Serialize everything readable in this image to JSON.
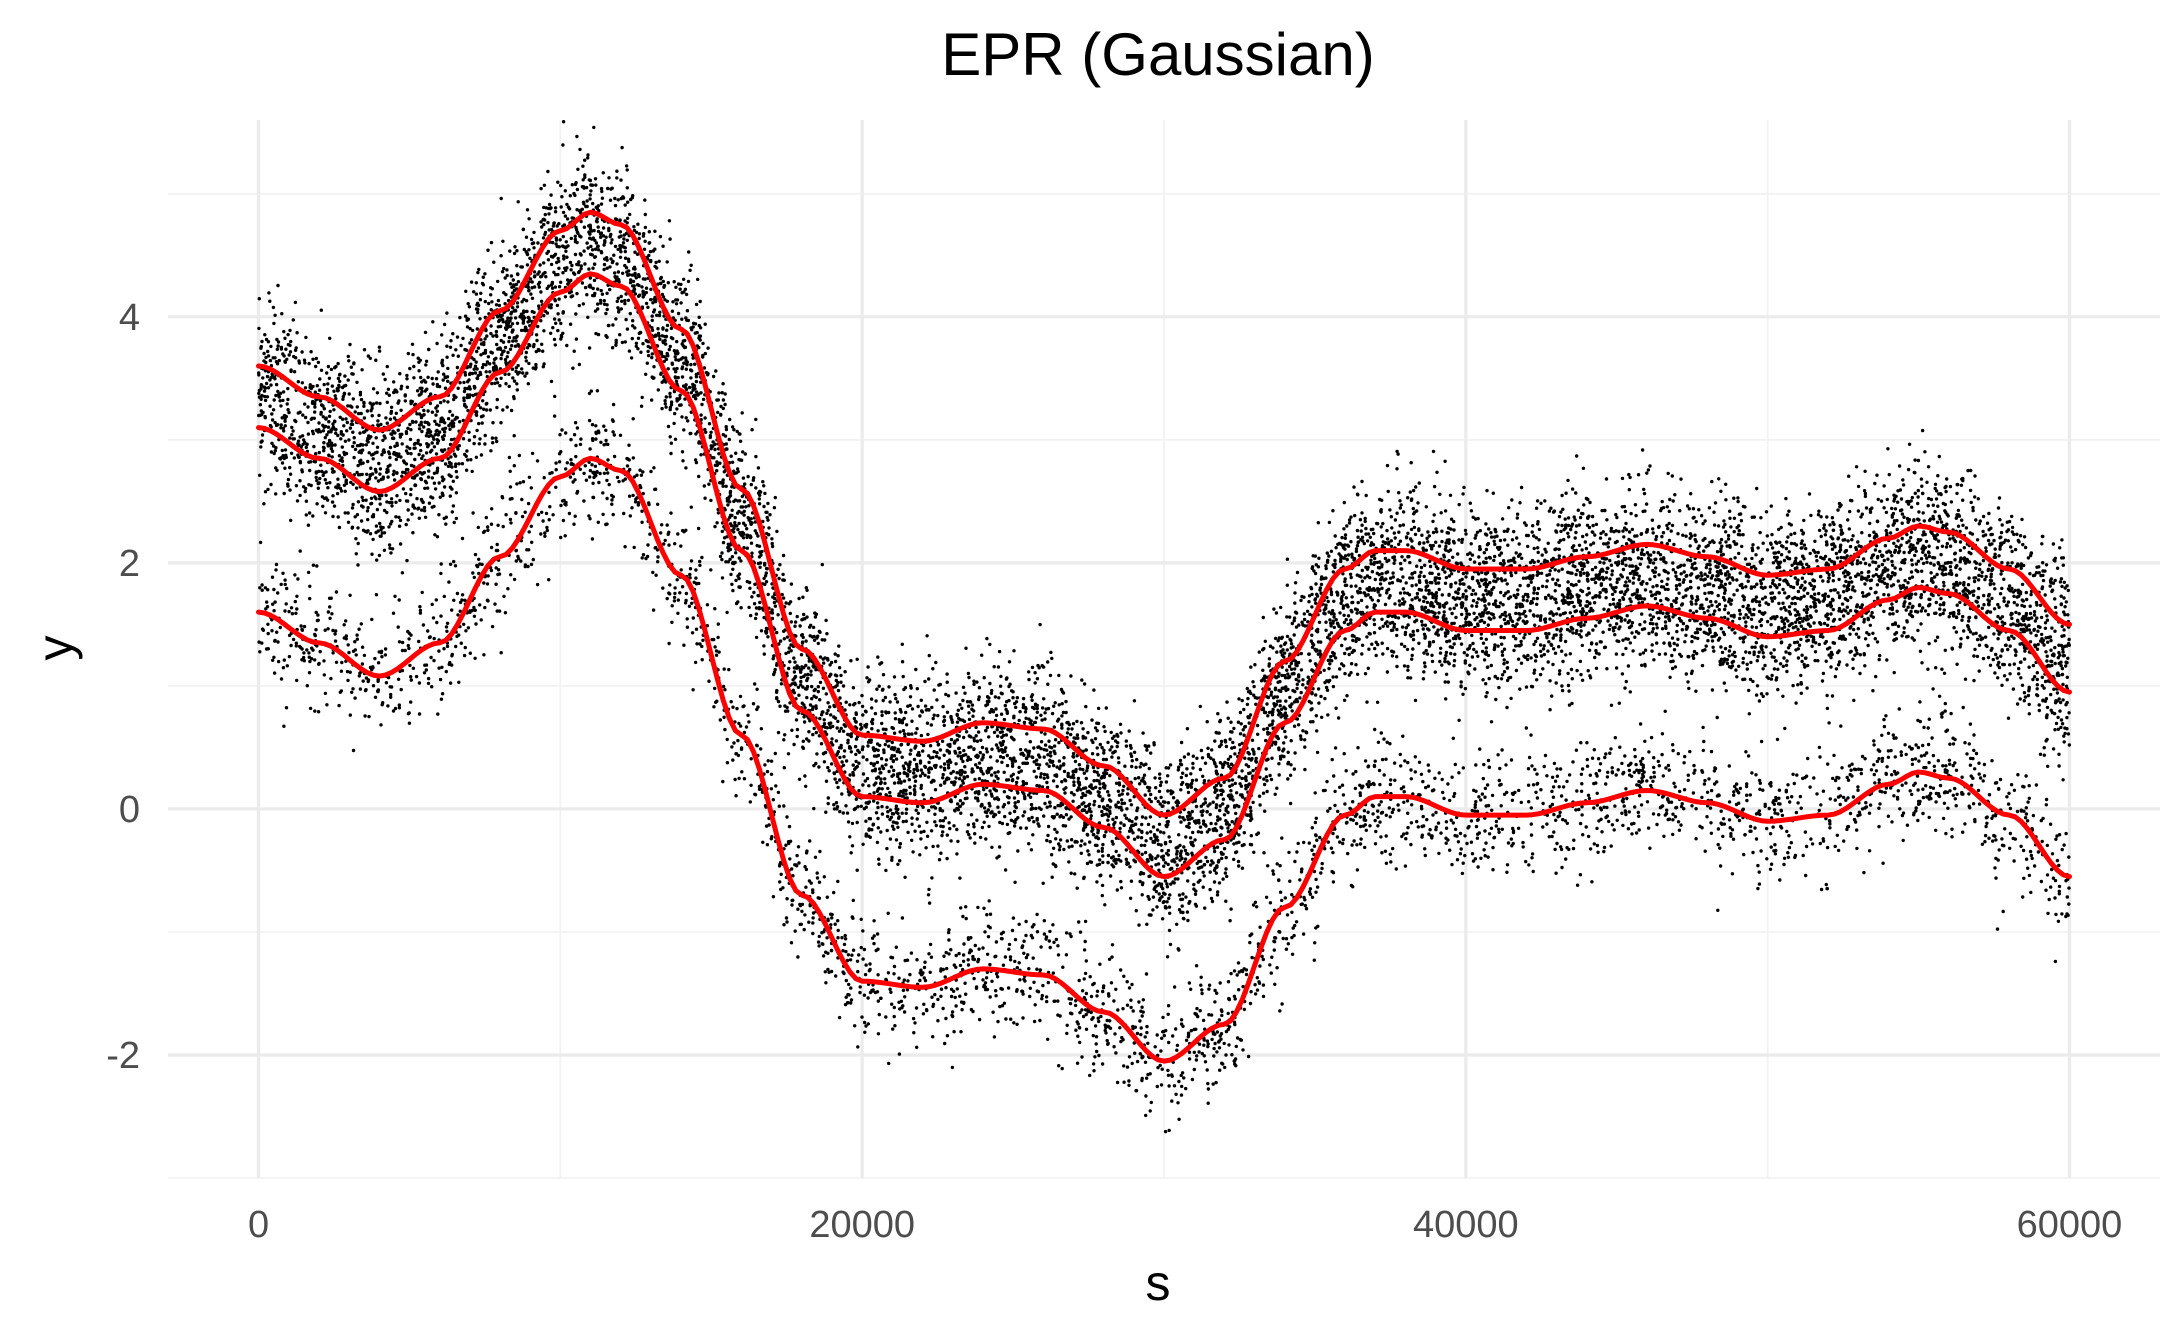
{
  "chart_data": {
    "type": "scatter",
    "title": "EPR (Gaussian)",
    "xlabel": "s",
    "ylabel": "y",
    "xlim": [
      -3000,
      63000
    ],
    "ylim": [
      -3.0,
      5.6
    ],
    "x_ticks": [
      0,
      20000,
      40000,
      60000
    ],
    "x_tick_labels": [
      "0",
      "20000",
      "40000",
      "60000"
    ],
    "y_ticks": [
      -2,
      0,
      2,
      4
    ],
    "y_tick_labels": [
      "-2",
      "0",
      "2",
      "4"
    ],
    "grid": true,
    "legend": "none",
    "point_color": "#000000",
    "line_color": "#ff0000",
    "series": [
      {
        "x": [
          0,
          2000,
          4000,
          6000,
          8000,
          10000,
          11000,
          12000,
          14000,
          16000,
          18000,
          20000,
          22000,
          24000,
          26000,
          28000,
          30000,
          32000,
          34000,
          36000,
          37000,
          38000,
          40000,
          42000,
          44000,
          46000,
          48000,
          50000,
          52000,
          54000,
          55000,
          56000,
          58000,
          60000
        ],
        "values": [
          3.6,
          3.35,
          3.08,
          3.35,
          4.05,
          4.7,
          4.85,
          4.75,
          3.9,
          2.6,
          1.3,
          0.6,
          0.55,
          0.7,
          0.65,
          0.35,
          -0.05,
          0.25,
          1.2,
          1.95,
          2.1,
          2.1,
          1.95,
          1.95,
          2.05,
          2.15,
          2.05,
          1.9,
          1.95,
          2.2,
          2.3,
          2.25,
          1.95,
          1.5
        ]
      },
      {
        "x": [
          0,
          2000,
          4000,
          6000,
          8000,
          10000,
          11000,
          12000,
          14000,
          16000,
          18000,
          20000,
          22000,
          24000,
          26000,
          28000,
          30000,
          32000,
          34000,
          36000,
          37000,
          38000,
          40000,
          42000,
          44000,
          46000,
          48000,
          50000,
          52000,
          54000,
          55000,
          56000,
          58000,
          60000
        ],
        "values": [
          3.1,
          2.85,
          2.58,
          2.85,
          3.55,
          4.2,
          4.35,
          4.25,
          3.4,
          2.1,
          0.8,
          0.1,
          0.05,
          0.2,
          0.15,
          -0.15,
          -0.55,
          -0.25,
          0.7,
          1.45,
          1.6,
          1.6,
          1.45,
          1.45,
          1.55,
          1.65,
          1.55,
          1.4,
          1.45,
          1.7,
          1.8,
          1.75,
          1.45,
          0.95
        ]
      },
      {
        "x": [
          0,
          2000,
          4000,
          6000,
          8000,
          10000,
          11000,
          12000,
          14000,
          16000,
          18000,
          20000,
          22000,
          24000,
          26000,
          28000,
          30000,
          32000,
          34000,
          36000,
          37000,
          38000,
          40000,
          42000,
          44000,
          46000,
          48000,
          50000,
          52000,
          54000,
          55000,
          56000,
          58000,
          60000
        ],
        "values": [
          1.6,
          1.35,
          1.08,
          1.35,
          2.05,
          2.7,
          2.85,
          2.75,
          1.9,
          0.6,
          -0.7,
          -1.4,
          -1.45,
          -1.3,
          -1.35,
          -1.65,
          -2.05,
          -1.75,
          -0.8,
          -0.05,
          0.1,
          0.1,
          -0.05,
          -0.05,
          0.05,
          0.15,
          0.05,
          -0.1,
          -0.05,
          0.2,
          0.3,
          0.25,
          -0.05,
          -0.55
        ]
      }
    ]
  }
}
